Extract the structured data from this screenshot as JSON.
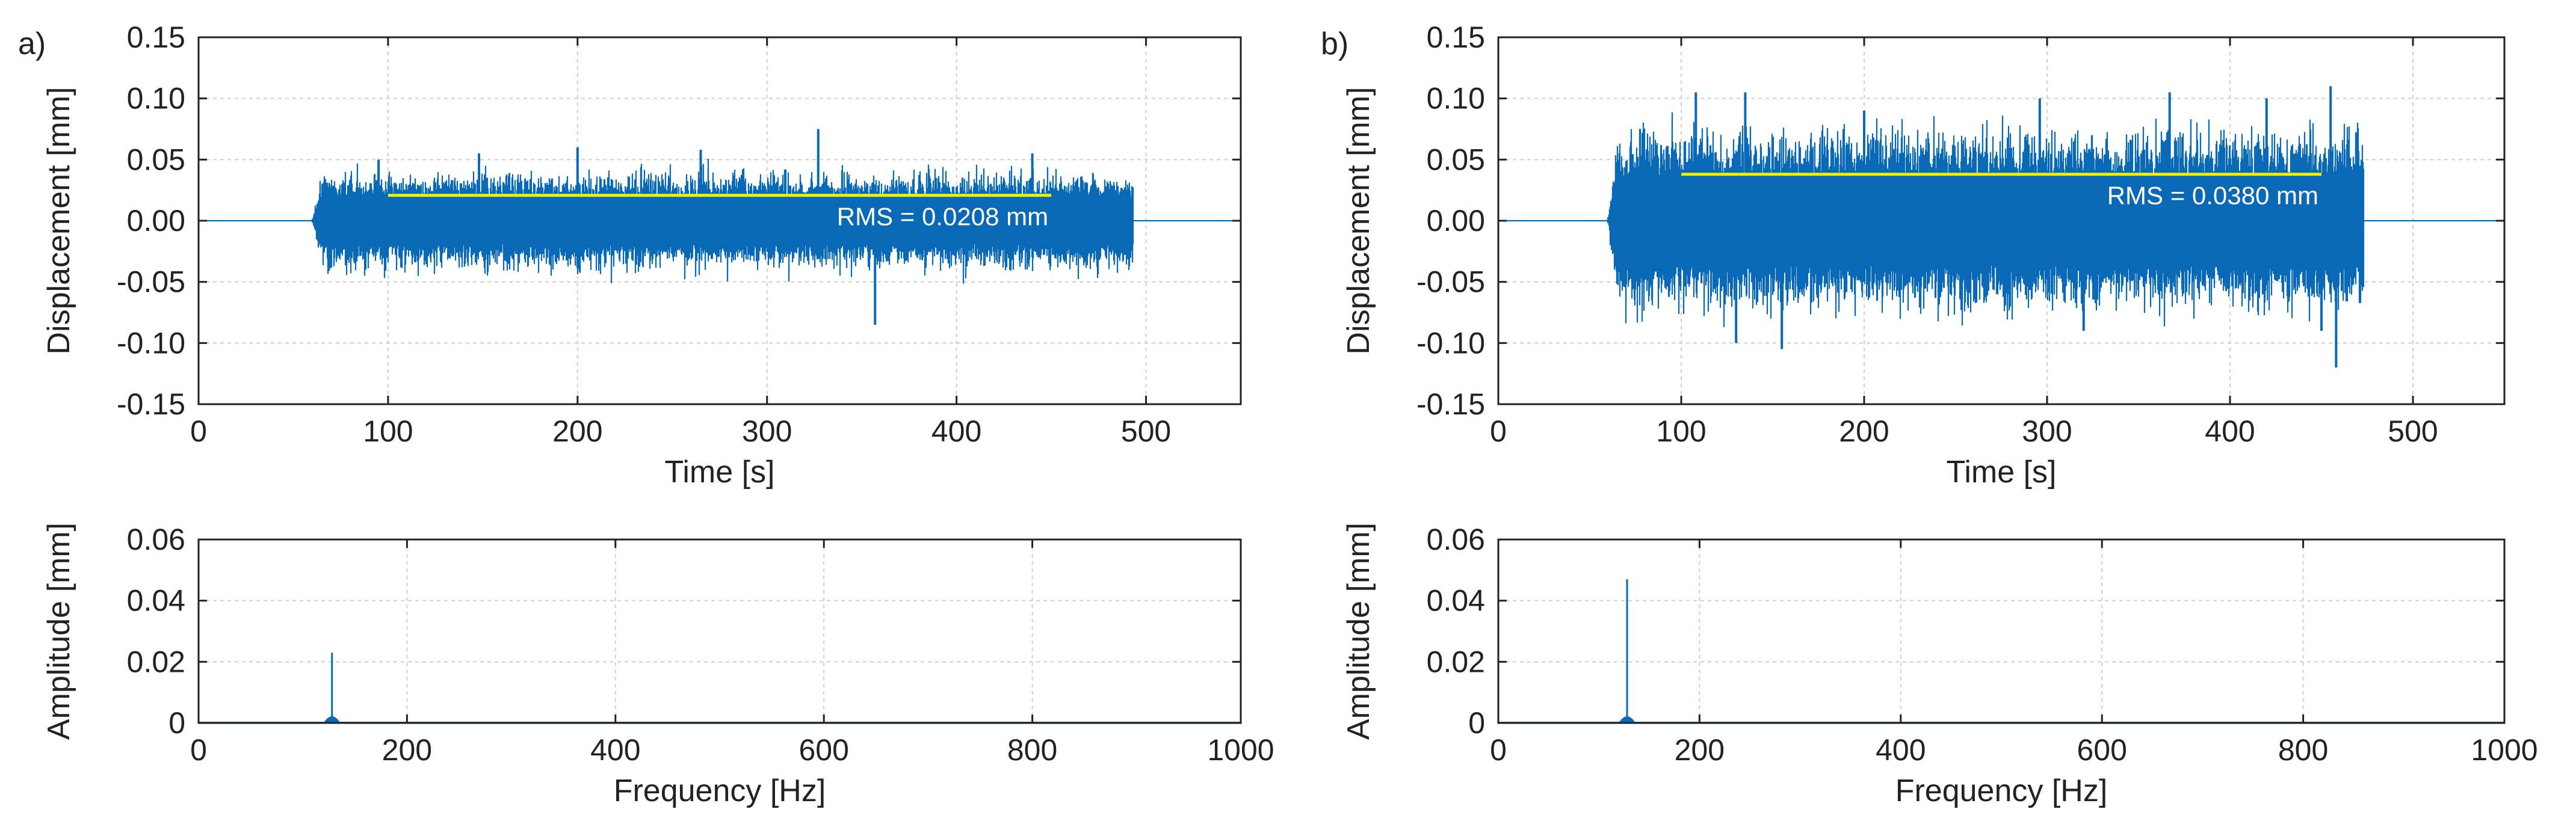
{
  "colors": {
    "signal": "#0a69b6",
    "rms_line": "#f0f000",
    "grid": "#cfcfcf",
    "axis": "#222222"
  },
  "chart_data": [
    {
      "panel_label": "a)",
      "type": "line",
      "title": "",
      "xlabel": "Time [s]",
      "ylabel": "Displacement [mm]",
      "xlim": [
        0,
        550
      ],
      "ylim": [
        -0.15,
        0.15
      ],
      "xticks": [
        0,
        100,
        200,
        300,
        400,
        500
      ],
      "xtick_labels": [
        "0",
        "100",
        "200",
        "300",
        "400",
        "500"
      ],
      "yticks": [
        0.15,
        0.1,
        0.05,
        0,
        -0.05,
        -0.1,
        -0.15
      ],
      "ytick_labels": [
        "0.15",
        "0.10",
        "0.05",
        "0.00",
        "-0.05",
        "-0.10",
        "-0.15"
      ],
      "grid": true,
      "signal": {
        "start": 60,
        "active_start": 65,
        "end": 493,
        "typical_amplitude": 0.035,
        "peaks": [
          [
            95,
            0.05
          ],
          [
            148,
            0.055
          ],
          [
            200,
            0.06
          ],
          [
            265,
            0.058
          ],
          [
            327,
            0.075
          ],
          [
            357,
            -0.085
          ],
          [
            440,
            0.055
          ]
        ]
      },
      "rms": {
        "x_start": 100,
        "x_end": 450,
        "value": 0.0208,
        "label": "RMS = 0.0208 mm"
      }
    },
    {
      "panel_label": "",
      "type": "line",
      "title": "",
      "xlabel": "Frequency [Hz]",
      "ylabel": "Amplitude [mm]",
      "xlim": [
        0,
        1000
      ],
      "ylim": [
        0,
        0.06
      ],
      "xticks": [
        0,
        200,
        400,
        600,
        800,
        1000
      ],
      "xtick_labels": [
        "0",
        "200",
        "400",
        "600",
        "800",
        "1000"
      ],
      "yticks": [
        0.06,
        0.04,
        0.02,
        0
      ],
      "ytick_labels": [
        "0.06",
        "0.04",
        "0.02",
        "0"
      ],
      "grid": true,
      "peak": {
        "x": 128,
        "y": 0.023
      }
    },
    {
      "panel_label": "b)",
      "type": "line",
      "title": "",
      "xlabel": "Time [s]",
      "ylabel": "Displacement [mm]",
      "xlim": [
        0,
        550
      ],
      "ylim": [
        -0.15,
        0.15
      ],
      "xticks": [
        0,
        100,
        200,
        300,
        400,
        500
      ],
      "xtick_labels": [
        "0",
        "100",
        "200",
        "300",
        "400",
        "500"
      ],
      "yticks": [
        0.15,
        0.1,
        0.05,
        0,
        -0.05,
        -0.1,
        -0.15
      ],
      "ytick_labels": [
        "0.15",
        "0.10",
        "0.05",
        "0.00",
        "-0.05",
        "-0.10",
        "-0.15"
      ],
      "grid": true,
      "signal": {
        "start": 60,
        "active_start": 65,
        "end": 473,
        "typical_amplitude": 0.065,
        "peaks": [
          [
            108,
            0.105
          ],
          [
            130,
            -0.1
          ],
          [
            135,
            0.105
          ],
          [
            155,
            -0.105
          ],
          [
            200,
            0.09
          ],
          [
            296,
            0.1
          ],
          [
            320,
            -0.09
          ],
          [
            367,
            0.105
          ],
          [
            420,
            0.1
          ],
          [
            450,
            -0.09
          ],
          [
            455,
            0.11
          ],
          [
            458,
            -0.12
          ]
        ]
      },
      "rms": {
        "x_start": 100,
        "x_end": 450,
        "value": 0.038,
        "label": "RMS = 0.0380 mm"
      }
    },
    {
      "panel_label": "",
      "type": "line",
      "title": "",
      "xlabel": "Frequency [Hz]",
      "ylabel": "Amplitude [mm]",
      "xlim": [
        0,
        1000
      ],
      "ylim": [
        0,
        0.06
      ],
      "xticks": [
        0,
        200,
        400,
        600,
        800,
        1000
      ],
      "xtick_labels": [
        "0",
        "200",
        "400",
        "600",
        "800",
        "1000"
      ],
      "yticks": [
        0.06,
        0.04,
        0.02,
        0
      ],
      "ytick_labels": [
        "0.06",
        "0.04",
        "0.02",
        "0"
      ],
      "grid": true,
      "peak": {
        "x": 128,
        "y": 0.047
      }
    }
  ]
}
